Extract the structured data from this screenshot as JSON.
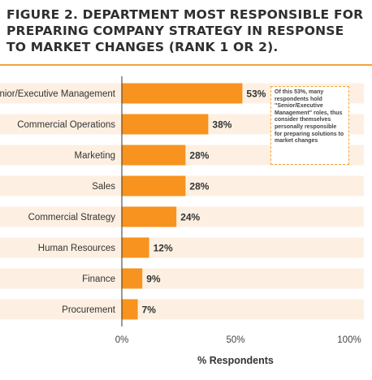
{
  "title": "FIGURE 2. DEPARTMENT MOST RESPONSIBLE FOR PREPARING COMPANY STRATEGY IN RESPONSE TO MARKET CHANGES (RANK 1 OR 2).",
  "annotation": "Of this 53%, many respondents hold \"Senior/Executive Management\" roles, thus consider themselves personally responsible for preparing solutions to market changes",
  "colors": {
    "bar": "#f7931e",
    "band": "#fdf0e2",
    "title_rule": "#f2a23a"
  },
  "chart_data": {
    "type": "bar",
    "orientation": "horizontal",
    "categories": [
      "Senior/Executive Management",
      "Commercial Operations",
      "Marketing",
      "Sales",
      "Commercial Strategy",
      "Human Resources",
      "Finance",
      "Procurement"
    ],
    "values": [
      53,
      38,
      28,
      28,
      24,
      12,
      9,
      7
    ],
    "value_labels": [
      "53%",
      "38%",
      "28%",
      "28%",
      "24%",
      "12%",
      "9%",
      "7%"
    ],
    "xlabel": "% Respondents",
    "xlim": [
      0,
      100
    ],
    "xticks": [
      0,
      50,
      100
    ],
    "xtick_labels": [
      "0%",
      "50%",
      "100%"
    ]
  }
}
